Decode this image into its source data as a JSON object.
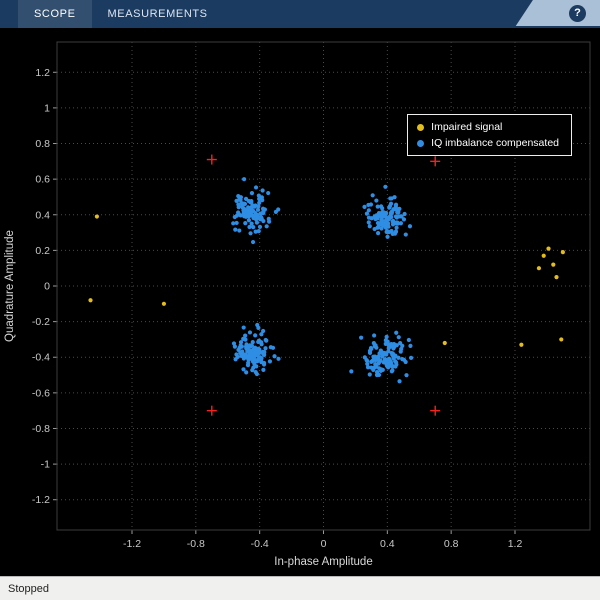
{
  "toolbar": {
    "tabs": [
      {
        "label": "SCOPE"
      },
      {
        "label": "MEASUREMENTS"
      }
    ],
    "help_label": "?"
  },
  "status_bar": {
    "text": "Stopped"
  },
  "chart_data": {
    "type": "scatter",
    "title": "",
    "xlabel": "In-phase Amplitude",
    "ylabel": "Quadrature Amplitude",
    "xlim": [
      -1.67,
      1.67
    ],
    "ylim": [
      -1.37,
      1.37
    ],
    "x_ticks": [
      -1.2,
      -0.8,
      -0.4,
      0,
      0.4,
      0.8,
      1.2
    ],
    "y_ticks": [
      -1.2,
      -1,
      -0.8,
      -0.6,
      -0.4,
      -0.2,
      0,
      0.2,
      0.4,
      0.6,
      0.8,
      1,
      1.2
    ],
    "grid": true,
    "grid_style": "dotted",
    "grid_color": "#4a4a4a",
    "tick_color": "#c8c8c8",
    "label_color": "#d8d8d8",
    "background": "#000000",
    "seed": 7,
    "legend": {
      "position": "top-right",
      "entries": [
        {
          "label": "Impaired signal",
          "color": "#e2bd1b",
          "marker": "dot"
        },
        {
          "label": "IQ imbalance compensated",
          "color": "#2f8ee4",
          "marker": "dot"
        }
      ]
    },
    "series": [
      {
        "name": "IQ imbalance compensated",
        "marker": "dot",
        "color": "#2f8ee4",
        "clusters": [
          {
            "center": [
              -0.45,
              0.42
            ],
            "sigma": 0.055,
            "count": 110
          },
          {
            "center": [
              0.4,
              0.38
            ],
            "sigma": 0.055,
            "count": 110
          },
          {
            "center": [
              -0.44,
              -0.37
            ],
            "sigma": 0.055,
            "count": 110
          },
          {
            "center": [
              0.39,
              -0.4
            ],
            "sigma": 0.06,
            "count": 115
          }
        ]
      },
      {
        "name": "Impaired signal",
        "marker": "dot",
        "color": "#e2bd1b",
        "points": [
          [
            -1.42,
            0.39
          ],
          [
            -1.46,
            -0.08
          ],
          [
            -1.0,
            -0.1
          ],
          [
            0.76,
            -0.32
          ],
          [
            1.24,
            -0.33
          ],
          [
            1.49,
            -0.3
          ],
          [
            1.38,
            0.17
          ],
          [
            1.44,
            0.12
          ],
          [
            1.35,
            0.1
          ],
          [
            1.46,
            0.05
          ],
          [
            1.5,
            0.19
          ],
          [
            1.41,
            0.21
          ]
        ]
      },
      {
        "name": "Reference constellation",
        "marker": "plus",
        "color": "#f5221d",
        "points": [
          [
            -0.7,
            0.71
          ],
          [
            0.7,
            0.7
          ],
          [
            -0.7,
            -0.7
          ],
          [
            0.7,
            -0.7
          ]
        ]
      }
    ]
  }
}
